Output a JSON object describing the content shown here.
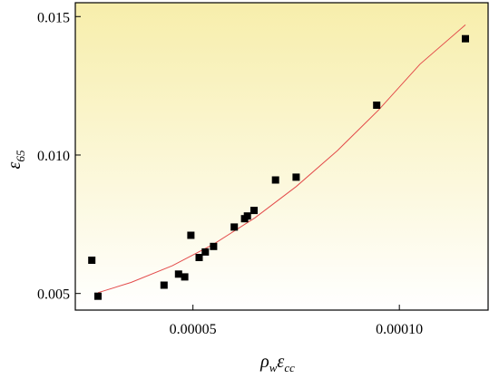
{
  "chart_data": {
    "type": "scatter",
    "xlabel": {
      "base": "ρ",
      "base_sub": "w",
      "mid": "ε",
      "mid_sub": "cc"
    },
    "ylabel": {
      "base": "ε",
      "sub": "65"
    },
    "xlim": [
      2.15e-05,
      0.0001215
    ],
    "ylim": [
      0.0044,
      0.0155
    ],
    "x_ticks": [
      5e-05,
      0.0001
    ],
    "x_tick_labels": [
      "0.00005",
      "0.00010"
    ],
    "y_ticks": [
      0.005,
      0.01,
      0.015
    ],
    "y_tick_labels": [
      "0.005",
      "0.010",
      "0.015"
    ],
    "grid": false,
    "background_gradient": [
      "#f7eeab",
      "#ffffff"
    ],
    "marker_color": "#000000",
    "fit_color": "#e34b4b",
    "points": [
      {
        "x": 2.55e-05,
        "y": 0.0062
      },
      {
        "x": 2.7e-05,
        "y": 0.0049
      },
      {
        "x": 4.3e-05,
        "y": 0.0053
      },
      {
        "x": 4.65e-05,
        "y": 0.0057
      },
      {
        "x": 4.8e-05,
        "y": 0.0056
      },
      {
        "x": 4.95e-05,
        "y": 0.0071
      },
      {
        "x": 5.15e-05,
        "y": 0.0063
      },
      {
        "x": 5.3e-05,
        "y": 0.0065
      },
      {
        "x": 5.5e-05,
        "y": 0.0067
      },
      {
        "x": 6e-05,
        "y": 0.0074
      },
      {
        "x": 6.25e-05,
        "y": 0.0077
      },
      {
        "x": 6.32e-05,
        "y": 0.0078
      },
      {
        "x": 6.48e-05,
        "y": 0.008
      },
      {
        "x": 7e-05,
        "y": 0.0091
      },
      {
        "x": 7.5e-05,
        "y": 0.0092
      },
      {
        "x": 9.45e-05,
        "y": 0.0118
      },
      {
        "x": 0.000116,
        "y": 0.0142
      }
    ],
    "fit": [
      {
        "x": 2.7e-05,
        "y": 0.00503
      },
      {
        "x": 3.5e-05,
        "y": 0.0054
      },
      {
        "x": 4.5e-05,
        "y": 0.006
      },
      {
        "x": 5.5e-05,
        "y": 0.00678
      },
      {
        "x": 6.5e-05,
        "y": 0.00773
      },
      {
        "x": 7.5e-05,
        "y": 0.00886
      },
      {
        "x": 8.5e-05,
        "y": 0.01016
      },
      {
        "x": 9.5e-05,
        "y": 0.01163
      },
      {
        "x": 0.000105,
        "y": 0.01328
      },
      {
        "x": 0.000116,
        "y": 0.0147
      }
    ]
  }
}
